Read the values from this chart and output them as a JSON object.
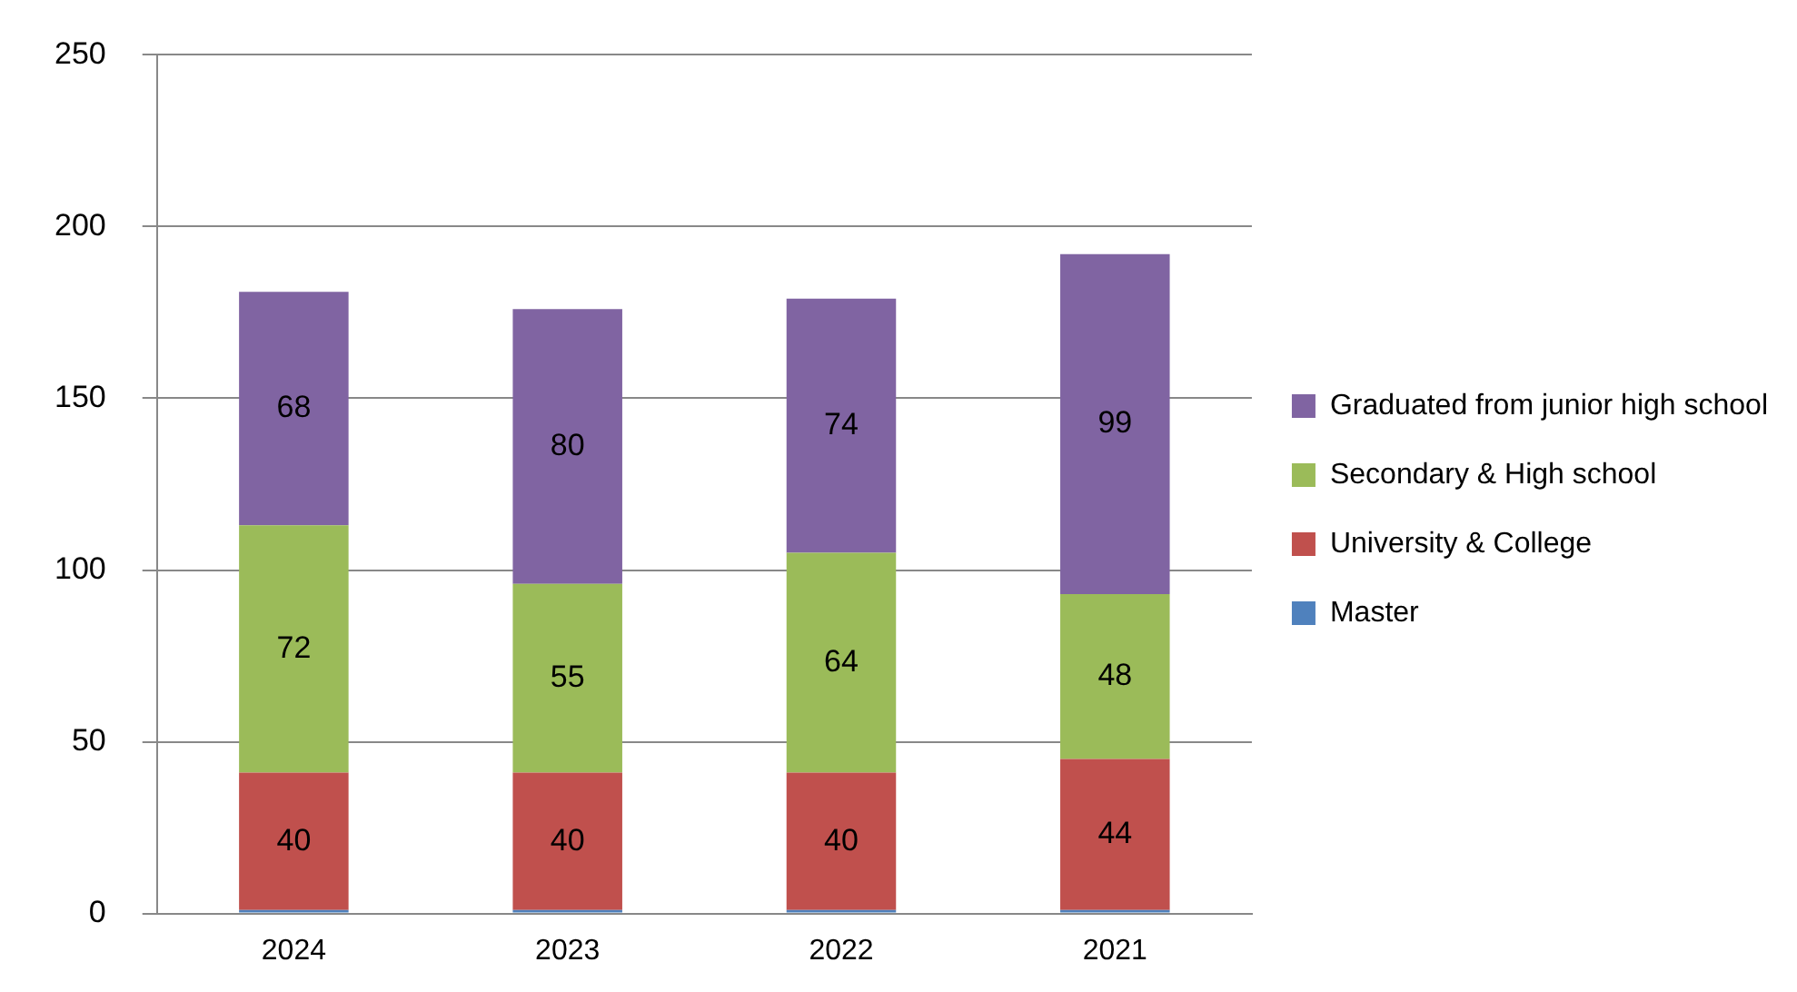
{
  "chart_data": {
    "type": "bar",
    "stacked": true,
    "categories": [
      "2024",
      "2023",
      "2022",
      "2021"
    ],
    "series": [
      {
        "name": "Master",
        "color": "#4f81bd",
        "values": [
          1,
          1,
          1,
          1
        ],
        "value_labels": [
          null,
          null,
          null,
          null
        ]
      },
      {
        "name": "University & College",
        "color": "#c0504d",
        "values": [
          40,
          40,
          40,
          44
        ],
        "value_labels": [
          "40",
          "40",
          "40",
          "44"
        ]
      },
      {
        "name": "Secondary & High school",
        "color": "#9bbb59",
        "values": [
          72,
          55,
          64,
          48
        ],
        "value_labels": [
          "72",
          "55",
          "64",
          "48"
        ]
      },
      {
        "name": "Graduated from junior high school",
        "color": "#8064a2",
        "values": [
          68,
          80,
          74,
          99
        ],
        "value_labels": [
          "68",
          "80",
          "74",
          "99"
        ]
      }
    ],
    "ylim": [
      0,
      250
    ],
    "yticks": [
      0,
      50,
      100,
      150,
      200,
      250
    ],
    "grid": "y",
    "legend": "right"
  }
}
